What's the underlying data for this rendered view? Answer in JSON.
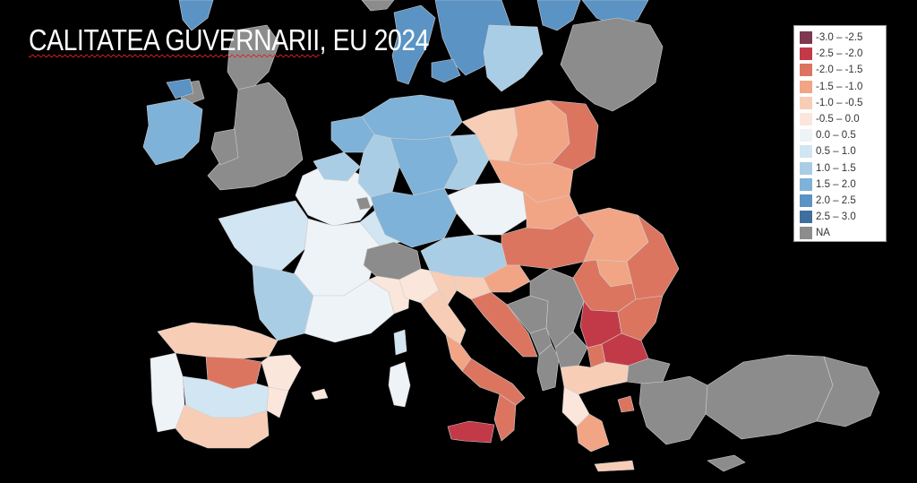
{
  "title": {
    "part1": "CALITATEA GUVERNARII",
    "part2": ", EU 2024"
  },
  "legend": {
    "items": [
      {
        "label": "-3.0 – -2.5",
        "color": "#7e3850"
      },
      {
        "label": "-2.5 – -2.0",
        "color": "#c23a48"
      },
      {
        "label": "-2.0 – -1.5",
        "color": "#dc7560"
      },
      {
        "label": "-1.5 – -1.0",
        "color": "#f1a585"
      },
      {
        "label": "-1.0 – -0.5",
        "color": "#f8cdb6"
      },
      {
        "label": "-0.5 – 0.0",
        "color": "#fbe6dc"
      },
      {
        "label": "0.0 – 0.5",
        "color": "#eef3f8"
      },
      {
        "label": "0.5 – 1.0",
        "color": "#d2e5f2"
      },
      {
        "label": "1.0 – 1.5",
        "color": "#aacde6"
      },
      {
        "label": "1.5 – 2.0",
        "color": "#7eb2d8"
      },
      {
        "label": "2.0 – 2.5",
        "color": "#5a93c4"
      },
      {
        "label": "2.5 – 3.0",
        "color": "#3f6f9f"
      },
      {
        "label": "NA",
        "color": "#8c8c8c"
      }
    ]
  }
}
